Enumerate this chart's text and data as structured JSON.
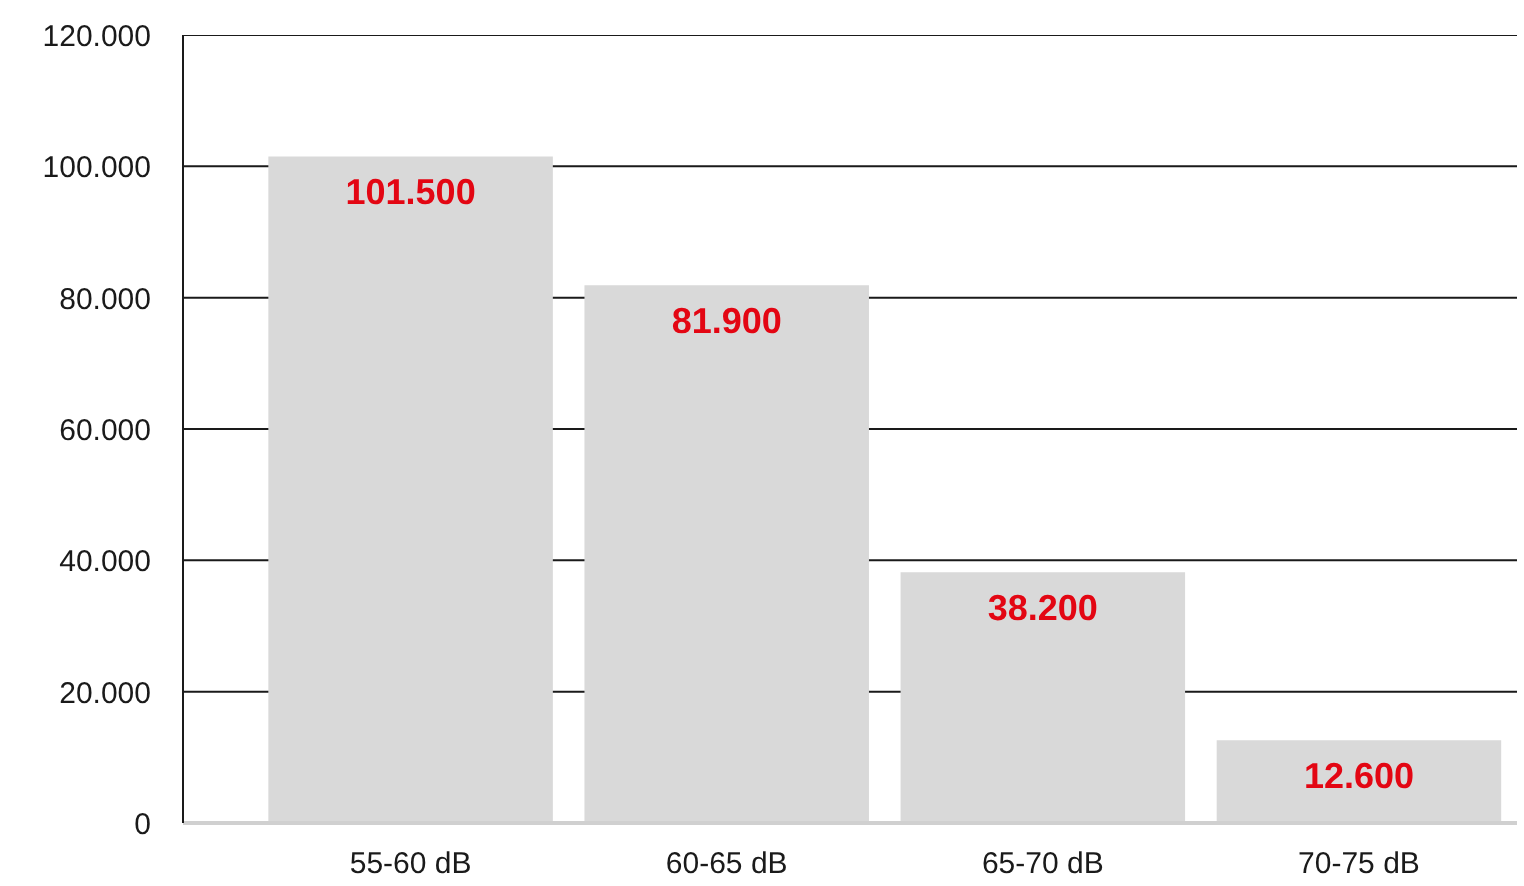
{
  "chart_data": {
    "type": "bar",
    "categories": [
      "55-60 dB",
      "60-65 dB",
      "65-70 dB",
      "70-75 dB"
    ],
    "values": [
      101500,
      81900,
      38200,
      12600
    ],
    "color": "#d9d9d9",
    "value_labels": [
      "101.500",
      "81.900",
      "38.200",
      "12.600"
    ],
    "ylim": [
      0,
      120000
    ],
    "yticks": [
      0,
      {
        "value": 20000,
        "label": "20.000"
      },
      {
        "value": 40000,
        "label": "40.000"
      },
      {
        "value": 60000,
        "label": "60.000"
      },
      {
        "value": 80000,
        "label": "80.000"
      },
      {
        "value": 100000,
        "label": "100.000"
      },
      {
        "value": 120000,
        "label": "120.000"
      }
    ],
    "grid": "y"
  }
}
